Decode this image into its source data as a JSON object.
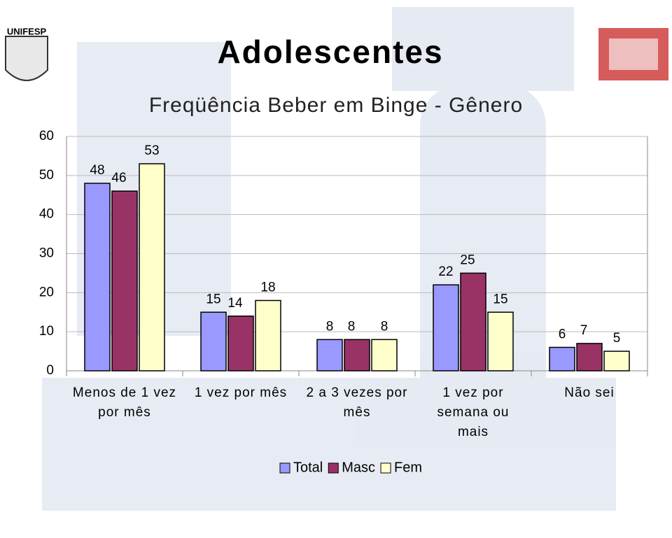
{
  "logo_text": "UNIFESP",
  "chart_data": {
    "type": "bar",
    "title": "Adolescentes",
    "subtitle": "Freqüência Beber em Binge - Gênero",
    "categories": [
      "Menos de 1 vez por mês",
      "1 vez por mês",
      "2 a 3 vezes por mês",
      "1 vez por semana ou mais",
      "Não sei"
    ],
    "series": [
      {
        "name": "Total",
        "color": "#9999ff",
        "values": [
          48,
          15,
          8,
          22,
          6
        ]
      },
      {
        "name": "Masc",
        "color": "#993366",
        "values": [
          46,
          14,
          8,
          25,
          7
        ]
      },
      {
        "name": "Fem",
        "color": "#ffffcc",
        "values": [
          53,
          18,
          8,
          15,
          5
        ]
      }
    ],
    "ylim": [
      0,
      60
    ],
    "yticks": [
      0,
      10,
      20,
      30,
      40,
      50,
      60
    ],
    "grid": true,
    "legend": "bottom"
  }
}
